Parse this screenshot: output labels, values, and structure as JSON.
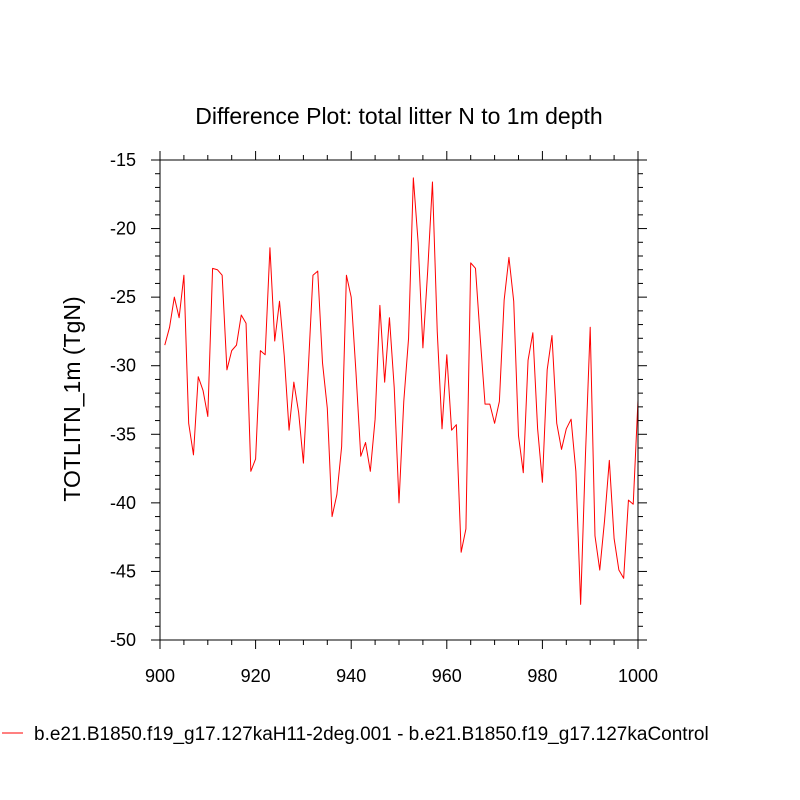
{
  "chart_data": {
    "type": "line",
    "title": "Difference Plot: total litter N to 1m depth",
    "xlabel": "",
    "ylabel": "TOTLITN_1m  (TgN)",
    "xlim": [
      900,
      1000
    ],
    "ylim": [
      -50,
      -15
    ],
    "xticks": [
      900,
      920,
      940,
      960,
      980,
      1000
    ],
    "yticks": [
      -50,
      -45,
      -40,
      -35,
      -30,
      -25,
      -20,
      -15
    ],
    "xtick_labels": [
      "900",
      "920",
      "940",
      "960",
      "980",
      "1000"
    ],
    "ytick_labels": [
      "-50",
      "-45",
      "-40",
      "-35",
      "-30",
      "-25",
      "-20",
      "-15"
    ],
    "series": [
      {
        "name": "b.e21.B1850.f19_g17.127kaH11-2deg.001 - b.e21.B1850.f19_g17.127kaControl",
        "color": "#ff0000",
        "x": [
          901,
          902,
          903,
          904,
          905,
          906,
          907,
          908,
          909,
          910,
          911,
          912,
          913,
          914,
          915,
          916,
          917,
          918,
          919,
          920,
          921,
          922,
          923,
          924,
          925,
          926,
          927,
          928,
          929,
          930,
          931,
          932,
          933,
          934,
          935,
          936,
          937,
          938,
          939,
          940,
          941,
          942,
          943,
          944,
          945,
          946,
          947,
          948,
          949,
          950,
          951,
          952,
          953,
          954,
          955,
          956,
          957,
          958,
          959,
          960,
          961,
          962,
          963,
          964,
          965,
          966,
          967,
          968,
          969,
          970,
          971,
          972,
          973,
          974,
          975,
          976,
          977,
          978,
          979,
          980,
          981,
          982,
          983,
          984,
          985,
          986,
          987,
          988,
          989,
          990,
          991,
          992,
          993,
          994,
          995,
          996,
          997,
          998,
          999,
          1000
        ],
        "values": [
          -28.5,
          -27.2,
          -25.0,
          -26.5,
          -23.4,
          -34.2,
          -36.5,
          -30.8,
          -31.8,
          -33.7,
          -22.9,
          -23.0,
          -23.4,
          -30.3,
          -28.9,
          -28.5,
          -26.3,
          -26.9,
          -37.7,
          -36.8,
          -28.9,
          -29.2,
          -21.4,
          -28.2,
          -25.3,
          -29.3,
          -34.7,
          -31.2,
          -33.4,
          -37.1,
          -30.4,
          -23.4,
          -23.1,
          -29.8,
          -33.1,
          -41.0,
          -39.4,
          -35.9,
          -23.4,
          -25.0,
          -30.5,
          -36.6,
          -35.6,
          -37.7,
          -33.9,
          -25.6,
          -31.2,
          -26.5,
          -31.6,
          -40.0,
          -32.6,
          -28.0,
          -16.3,
          -21.0,
          -28.7,
          -23.1,
          -16.6,
          -27.5,
          -34.6,
          -29.2,
          -34.7,
          -34.3,
          -43.6,
          -41.9,
          -22.5,
          -22.9,
          -28.0,
          -32.8,
          -32.8,
          -34.2,
          -32.6,
          -25.2,
          -22.1,
          -25.3,
          -35.1,
          -37.8,
          -29.6,
          -27.6,
          -34.6,
          -38.5,
          -30.3,
          -27.8,
          -34.2,
          -36.1,
          -34.6,
          -33.9,
          -37.7,
          -47.4,
          -36.6,
          -27.2,
          -42.4,
          -44.9,
          -41.3,
          -36.9,
          -42.6,
          -44.9,
          -45.5,
          -39.8,
          -40.1,
          -32.5
        ]
      }
    ],
    "legend": {
      "placement": "bottom",
      "label": "b.e21.B1850.f19_g17.127kaH11-2deg.001 - b.e21.B1850.f19_g17.127kaControl"
    },
    "grid": false
  }
}
